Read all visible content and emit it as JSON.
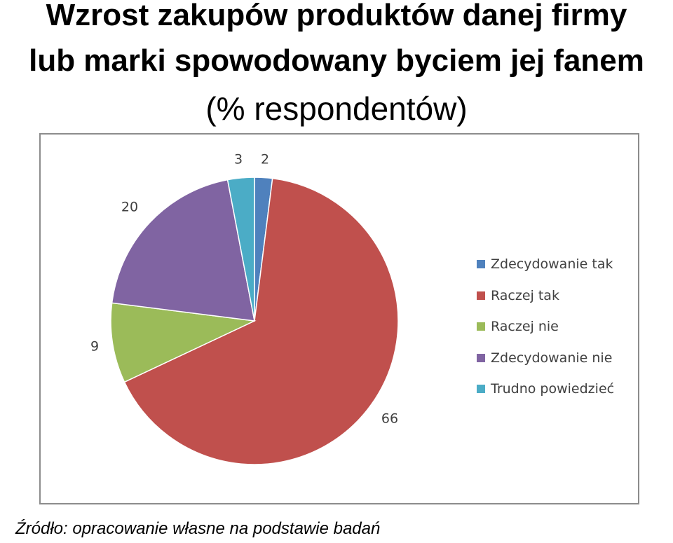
{
  "title": {
    "line1": "Wzrost zakupów produktów danej firmy",
    "line2": "lub marki spowodowany byciem jej fanem",
    "line3": "(% respondentów)"
  },
  "source": "Źródło: opracowanie własne na podstawie badań",
  "chart_data": {
    "type": "pie",
    "title": "Wzrost zakupów produktów danej firmy lub marki spowodowany byciem jej fanem (% respondentów)",
    "legend_position": "right",
    "categories": [
      "Zdecydowanie tak",
      "Raczej tak",
      "Raczej nie",
      "Zdecydowanie nie",
      "Trudno powiedzieć"
    ],
    "values": [
      2,
      66,
      9,
      20,
      3
    ],
    "colors": [
      "#4f81bd",
      "#c0504d",
      "#9bbb59",
      "#8064a2",
      "#4bacc6"
    ]
  }
}
